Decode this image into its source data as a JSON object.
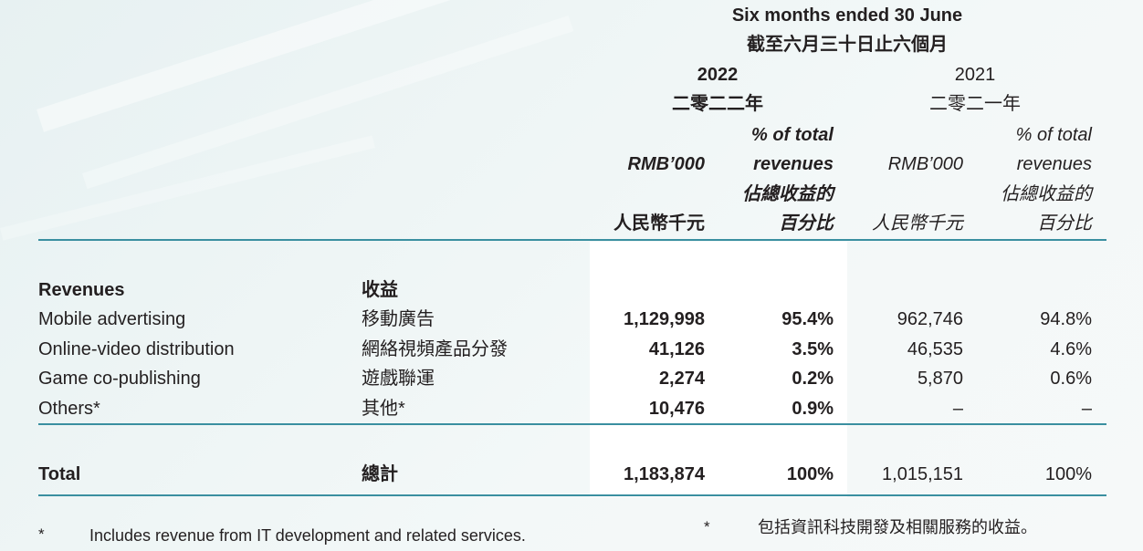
{
  "header": {
    "period_en": "Six months ended 30 June",
    "period_zh": "截至六月三十日止六個月",
    "year_2022": "2022",
    "year_2022_zh": "二零二二年",
    "year_2021": "2021",
    "year_2021_zh": "二零二一年",
    "pct_line1": "% of total",
    "pct_line2": "revenues",
    "pct_line3": "佔總收益的",
    "pct_line4": "百分比",
    "rmb_en": "RMB’000",
    "rmb_zh": "人民幣千元"
  },
  "section": {
    "label_en": "Revenues",
    "label_zh": "收益"
  },
  "rows": [
    {
      "en": "Mobile advertising",
      "zh": "移動廣告",
      "v2022": "1,129,998",
      "p2022": "95.4%",
      "v2021": "962,746",
      "p2021": "94.8%"
    },
    {
      "en": "Online-video distribution",
      "zh": "網絡視頻產品分發",
      "v2022": "41,126",
      "p2022": "3.5%",
      "v2021": "46,535",
      "p2021": "4.6%"
    },
    {
      "en": "Game co-publishing",
      "zh": "遊戲聯運",
      "v2022": "2,274",
      "p2022": "0.2%",
      "v2021": "5,870",
      "p2021": "0.6%"
    },
    {
      "en": "Others*",
      "zh": "其他*",
      "v2022": "10,476",
      "p2022": "0.9%",
      "v2021": "–",
      "p2021": "–"
    }
  ],
  "total": {
    "en": "Total",
    "zh": "總計",
    "v2022": "1,183,874",
    "p2022": "100%",
    "v2021": "1,015,151",
    "p2021": "100%"
  },
  "footnotes": {
    "en_mark": "*",
    "en_text": "Includes revenue from IT development and related services.",
    "zh_mark": "*",
    "zh_text": "包括資訊科技開發及相關服務的收益。"
  },
  "colors": {
    "rule": "#3a8fa0",
    "highlight_column": "#ffffff",
    "text": "#231f20"
  }
}
